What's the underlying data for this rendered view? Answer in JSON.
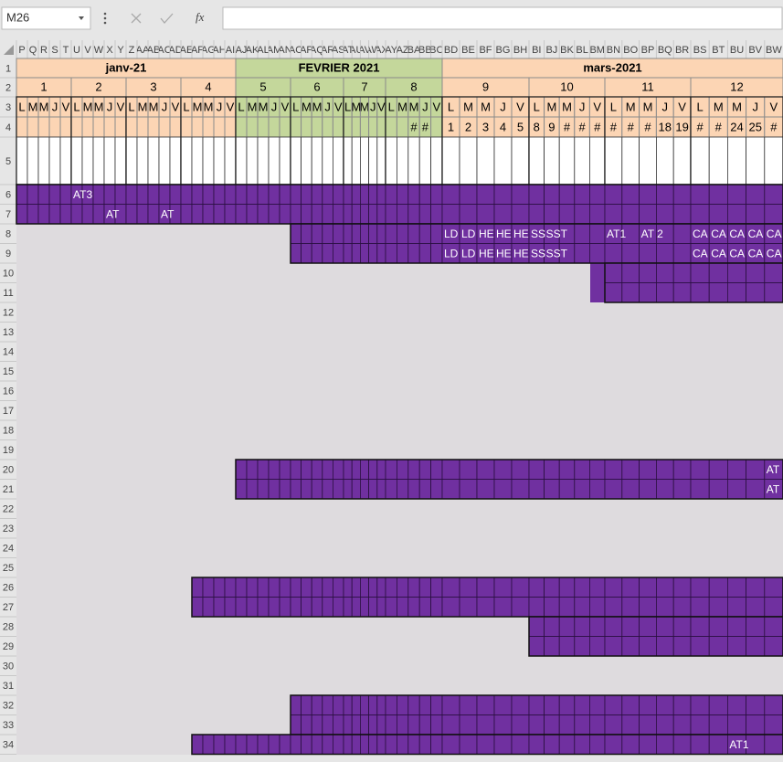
{
  "name_box": "M26",
  "function_label": "fx",
  "columns": [
    "P",
    "Q",
    "R",
    "S",
    "T",
    "U",
    "V",
    "W",
    "X",
    "Y",
    "Z",
    "AA",
    "AB",
    "AC",
    "AD",
    "AE",
    "AF",
    "AG",
    "AH",
    "AI",
    "AJ",
    "AK",
    "AL",
    "AM",
    "AN",
    "AO",
    "AP",
    "AQ",
    "AR",
    "AS",
    "AT",
    "AU",
    "AV",
    "AW",
    "AX",
    "AY",
    "AZ",
    "BA",
    "BB",
    "BC",
    "BD",
    "BE",
    "BF",
    "BG",
    "BH",
    "BI",
    "BJ",
    "BK",
    "BL",
    "BM",
    "BN",
    "BO",
    "BP",
    "BQ",
    "BR",
    "BS",
    "BT",
    "BU",
    "BV",
    "BW"
  ],
  "row_numbers": [
    1,
    2,
    3,
    4,
    5,
    6,
    7,
    8,
    9,
    10,
    11,
    12,
    13,
    14,
    15,
    16,
    17,
    18,
    19,
    20,
    21,
    22,
    23,
    24,
    25,
    26,
    27,
    28,
    29,
    30,
    31,
    32,
    33,
    34
  ],
  "months": [
    {
      "label": "janv-21",
      "fill": "#fcd5b4",
      "weeks": [
        {
          "number": "1",
          "days": [
            "L",
            "M",
            "M",
            "J",
            "V"
          ],
          "dates": [
            null,
            null,
            null,
            null,
            null
          ]
        },
        {
          "number": "2",
          "days": [
            "L",
            "M",
            "M",
            "J",
            "V"
          ],
          "dates": [
            null,
            null,
            null,
            null,
            null
          ]
        },
        {
          "number": "3",
          "days": [
            "L",
            "M",
            "M",
            "J",
            "V"
          ],
          "dates": [
            null,
            null,
            null,
            null,
            null
          ]
        },
        {
          "number": "4",
          "days": [
            "L",
            "M",
            "M",
            "J",
            "V"
          ],
          "dates": [
            null,
            null,
            null,
            null,
            null
          ]
        }
      ]
    },
    {
      "label": "FEVRIER 2021",
      "fill": "#c4d79b",
      "weeks": [
        {
          "number": "5",
          "days": [
            "L",
            "M",
            "M",
            "J",
            "V"
          ],
          "dates": [
            null,
            null,
            null,
            null,
            null
          ]
        },
        {
          "number": "6",
          "days": [
            "L",
            "M",
            "M",
            "J",
            "V"
          ],
          "dates": [
            null,
            null,
            null,
            null,
            null
          ]
        },
        {
          "number": "7",
          "days": [
            "L",
            "M",
            "M",
            "J",
            "V"
          ],
          "dates": [
            null,
            null,
            null,
            null,
            null
          ]
        },
        {
          "number": "8",
          "days": [
            "L",
            "M",
            "M",
            "J",
            "V"
          ],
          "dates": [
            null,
            null,
            "#",
            "#",
            null
          ]
        }
      ]
    },
    {
      "label": "mars-2021",
      "fill": "#fcd5b4",
      "weeks": [
        {
          "number": "9",
          "days": [
            "L",
            "M",
            "M",
            "J",
            "V"
          ],
          "dates": [
            "1",
            "2",
            "3",
            "4",
            "5"
          ]
        },
        {
          "number": "10",
          "days": [
            "L",
            "M",
            "M",
            "J",
            "V"
          ],
          "dates": [
            "8",
            "9",
            "#",
            "#",
            "#"
          ]
        },
        {
          "number": "11",
          "days": [
            "L",
            "M",
            "M",
            "J",
            "V"
          ],
          "dates": [
            "#",
            "#",
            "#",
            "18",
            "19"
          ]
        },
        {
          "number": "12",
          "days": [
            "L",
            "M",
            "M",
            "J",
            "V"
          ],
          "dates": [
            "#",
            "#",
            "24",
            "25",
            "#"
          ]
        }
      ]
    }
  ],
  "blocks": [
    {
      "rows": [
        6,
        7
      ],
      "from": "P",
      "to": "BW"
    },
    {
      "rows": [
        8,
        9
      ],
      "from": "AO",
      "to": "BW"
    },
    {
      "rows": [
        10,
        11
      ],
      "from": "BN",
      "to": "BW"
    },
    {
      "rows": [
        20,
        21
      ],
      "from": "AJ",
      "to": "BW"
    },
    {
      "rows": [
        26,
        27
      ],
      "from": "AF",
      "to": "BW"
    },
    {
      "rows": [
        28,
        29
      ],
      "from": "BI",
      "to": "BW"
    },
    {
      "rows": [
        32,
        33
      ],
      "from": "AO",
      "to": "BW"
    },
    {
      "rows": [
        34,
        34
      ],
      "from": "AF",
      "to": "BW"
    }
  ],
  "labels": [
    {
      "row": 6,
      "col": "U",
      "text": "AT3"
    },
    {
      "row": 7,
      "col": "X",
      "text": "AT"
    },
    {
      "row": 7,
      "col": "AC",
      "text": "AT"
    },
    {
      "row": 8,
      "col": "BD",
      "text": "LD"
    },
    {
      "row": 8,
      "col": "BE",
      "text": "LD"
    },
    {
      "row": 8,
      "col": "BF",
      "text": "HE"
    },
    {
      "row": 8,
      "col": "BG",
      "text": "HE"
    },
    {
      "row": 8,
      "col": "BH",
      "text": "HE"
    },
    {
      "row": 8,
      "col": "BI",
      "text": "SS"
    },
    {
      "row": 8,
      "col": "BJ",
      "text": "SST"
    },
    {
      "row": 8,
      "col": "BN",
      "text": "AT1"
    },
    {
      "row": 8,
      "col": "BP",
      "text": "AT 2"
    },
    {
      "row": 8,
      "col": "BS",
      "text": "CA"
    },
    {
      "row": 8,
      "col": "BT",
      "text": "CA"
    },
    {
      "row": 8,
      "col": "BU",
      "text": "CA"
    },
    {
      "row": 8,
      "col": "BV",
      "text": "CA"
    },
    {
      "row": 8,
      "col": "BW",
      "text": "CA"
    },
    {
      "row": 9,
      "col": "BD",
      "text": "LD"
    },
    {
      "row": 9,
      "col": "BE",
      "text": "LD"
    },
    {
      "row": 9,
      "col": "BF",
      "text": "HE"
    },
    {
      "row": 9,
      "col": "BG",
      "text": "HE"
    },
    {
      "row": 9,
      "col": "BH",
      "text": "HE"
    },
    {
      "row": 9,
      "col": "BI",
      "text": "SS"
    },
    {
      "row": 9,
      "col": "BJ",
      "text": "SST"
    },
    {
      "row": 9,
      "col": "BS",
      "text": "CA"
    },
    {
      "row": 9,
      "col": "BT",
      "text": "CA"
    },
    {
      "row": 9,
      "col": "BU",
      "text": "CA"
    },
    {
      "row": 9,
      "col": "BV",
      "text": "CA"
    },
    {
      "row": 9,
      "col": "BW",
      "text": "CA"
    },
    {
      "row": 20,
      "col": "BW",
      "text": "AT"
    },
    {
      "row": 21,
      "col": "BW",
      "text": "AT"
    },
    {
      "row": 34,
      "col": "BU",
      "text": "AT1"
    }
  ]
}
